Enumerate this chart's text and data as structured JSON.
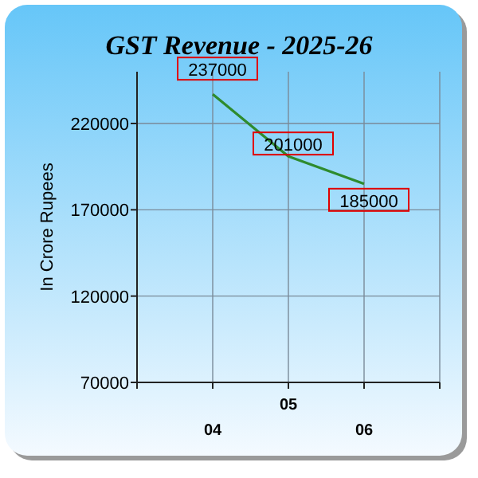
{
  "chart_data": {
    "type": "line",
    "title": "GST Revenue - 2025-26",
    "ylabel": "In Crore Rupees",
    "categories": [
      "04",
      "05",
      "06"
    ],
    "series": [
      {
        "color": "#2e8b2e",
        "values": [
          237000,
          201000,
          185000
        ]
      }
    ],
    "ylim": [
      70000,
      250000
    ],
    "yticks": [
      70000,
      120000,
      170000,
      220000
    ],
    "grid": true,
    "data_labels": true,
    "marker": "none"
  }
}
